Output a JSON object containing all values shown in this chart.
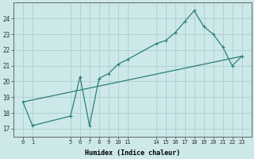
{
  "xlabel": "Humidex (Indice chaleur)",
  "bg_color": "#cce8e8",
  "grid_color": "#aacfcf",
  "line_color": "#2d7d7d",
  "xlim": [
    -1,
    24
  ],
  "ylim": [
    16.5,
    25.0
  ],
  "xticks": [
    0,
    1,
    5,
    6,
    7,
    8,
    9,
    10,
    11,
    14,
    15,
    16,
    17,
    18,
    19,
    20,
    21,
    22,
    23
  ],
  "yticks": [
    17,
    18,
    19,
    20,
    21,
    22,
    23,
    24
  ],
  "line1_x": [
    0,
    1,
    5,
    6,
    7,
    8,
    9,
    10,
    11,
    14,
    15,
    16,
    17,
    18,
    19,
    20,
    21,
    22,
    23
  ],
  "line1_y": [
    18.7,
    17.2,
    17.8,
    20.3,
    17.2,
    20.2,
    20.5,
    21.1,
    21.4,
    22.4,
    22.6,
    23.1,
    23.8,
    24.5,
    23.5,
    23.0,
    22.2,
    21.0,
    21.6
  ],
  "line2_x": [
    0,
    23
  ],
  "line2_y": [
    18.7,
    21.6
  ],
  "xlabel_fontsize": 6,
  "tick_fontsize": 5,
  "ytick_fontsize": 5.5
}
